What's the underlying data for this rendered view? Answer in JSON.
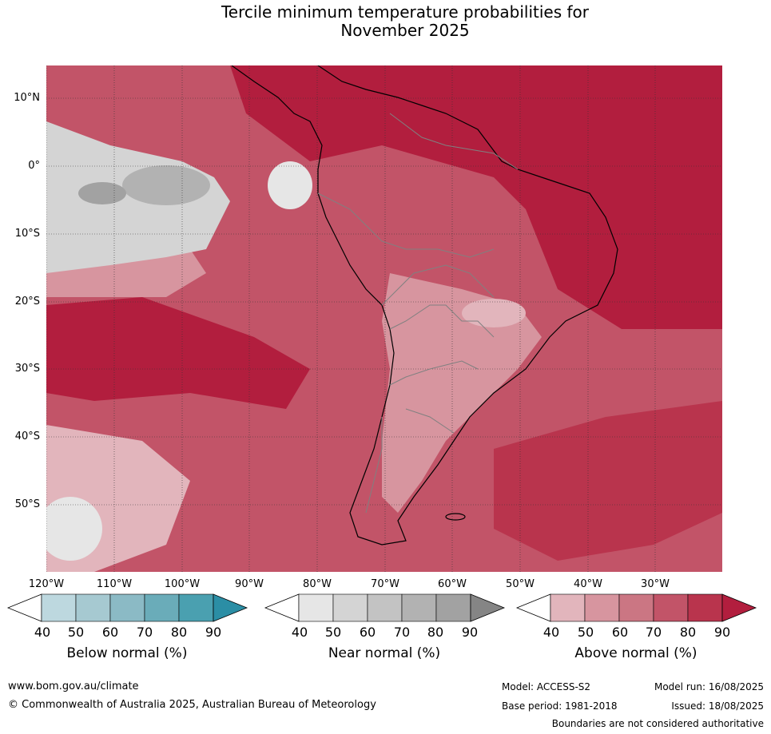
{
  "title_line1": "Tercile minimum temperature probabilities for",
  "title_line2": "November 2025",
  "lat_labels": [
    "10°N",
    "0°",
    "10°S",
    "20°S",
    "30°S",
    "40°S",
    "50°S"
  ],
  "lon_labels": [
    "120°W",
    "110°W",
    "100°W",
    "90°W",
    "80°W",
    "70°W",
    "60°W",
    "50°W",
    "40°W",
    "30°W"
  ],
  "colorbars": [
    {
      "title": "Below normal (%)",
      "ticks": [
        "40",
        "50",
        "60",
        "70",
        "80",
        "90"
      ],
      "colors": [
        "#ffffff",
        "#bdd8df",
        "#a6c9d1",
        "#8bbac5",
        "#6aacb9",
        "#4aa0b0",
        "#2b8ea5"
      ]
    },
    {
      "title": "Near normal (%)",
      "ticks": [
        "40",
        "50",
        "60",
        "70",
        "80",
        "90"
      ],
      "colors": [
        "#ffffff",
        "#e6e6e6",
        "#d4d4d4",
        "#c3c3c3",
        "#b2b2b2",
        "#a2a2a2",
        "#858585"
      ]
    },
    {
      "title": "Above normal (%)",
      "ticks": [
        "40",
        "50",
        "60",
        "70",
        "80",
        "90"
      ],
      "colors": [
        "#ffffff",
        "#e2b5bc",
        "#d7959f",
        "#cb7683",
        "#c25468",
        "#b9344d",
        "#b21e3e"
      ]
    }
  ],
  "footer": {
    "url": "www.bom.gov.au/climate",
    "copyright": "© Commonwealth of Australia 2025, Australian Bureau of Meteorology",
    "model": "Model: ACCESS-S2",
    "model_run": "Model run: 16/08/2025",
    "base_period": "Base period: 1981-2018",
    "issued": "Issued: 18/08/2025",
    "boundaries_note": "Boundaries are not considered authoritative"
  }
}
